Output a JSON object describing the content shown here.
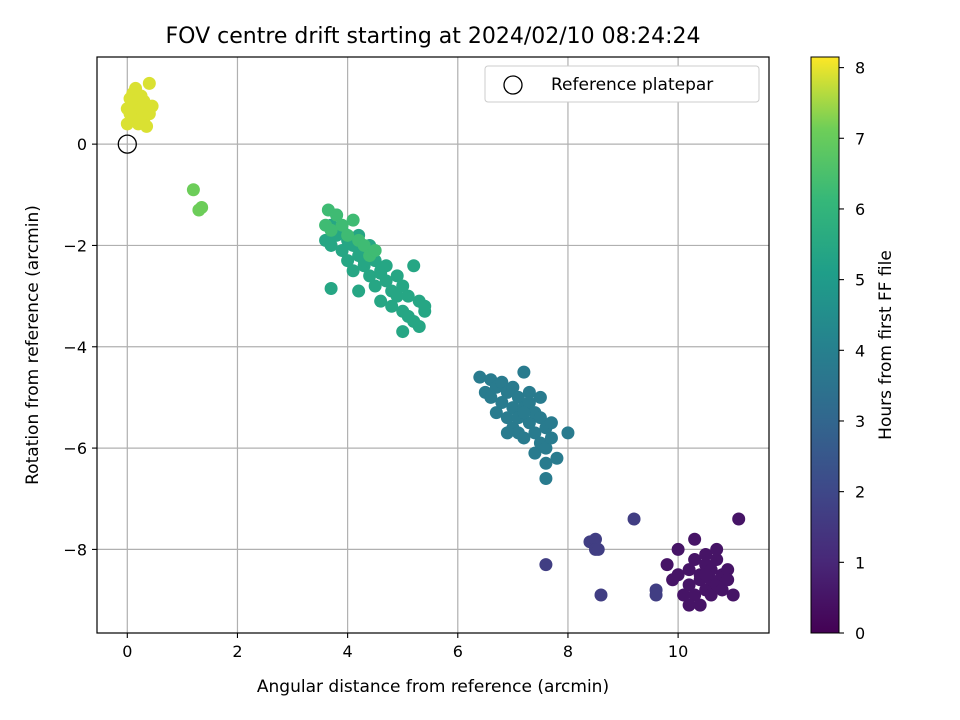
{
  "chart_data": {
    "type": "scatter",
    "title": "FOV centre drift starting at 2024/02/10 08:24:24",
    "xlabel": "Angular distance from reference (arcmin)",
    "ylabel": "Rotation from reference (arcmin)",
    "xlim": [
      -0.55,
      11.65
    ],
    "ylim": [
      -9.65,
      1.72
    ],
    "xticks": [
      0,
      2,
      4,
      6,
      8,
      10
    ],
    "xtick_labels": [
      "0",
      "2",
      "4",
      "6",
      "8",
      "10"
    ],
    "yticks": [
      0,
      -2,
      -4,
      -6,
      -8
    ],
    "ytick_labels": [
      "0",
      "−2",
      "−4",
      "−6",
      "−8"
    ],
    "grid": true,
    "legend": {
      "placement": "upper-right",
      "entries": [
        "Reference platepar"
      ]
    },
    "reference_point": {
      "x": 0,
      "y": 0,
      "name": "Reference platepar"
    },
    "colorbar": {
      "label": "Hours from first FF file",
      "range": [
        0,
        8.15
      ],
      "ticks": [
        0,
        1,
        2,
        3,
        4,
        5,
        6,
        7,
        8
      ],
      "tick_labels": [
        "0",
        "1",
        "2",
        "3",
        "4",
        "5",
        "6",
        "7",
        "8"
      ],
      "colormap": "viridis"
    },
    "clusters": [
      {
        "hours": 0.5,
        "points": [
          [
            9.8,
            -8.3
          ],
          [
            9.9,
            -8.6
          ],
          [
            10.0,
            -8.5
          ],
          [
            10.0,
            -8.0
          ],
          [
            10.1,
            -8.9
          ],
          [
            10.2,
            -8.4
          ],
          [
            10.2,
            -8.7
          ],
          [
            10.3,
            -8.2
          ],
          [
            10.3,
            -8.9
          ],
          [
            10.3,
            -7.8
          ],
          [
            10.4,
            -8.5
          ],
          [
            10.4,
            -8.6
          ],
          [
            10.4,
            -9.1
          ],
          [
            10.5,
            -8.3
          ],
          [
            10.5,
            -8.8
          ],
          [
            10.5,
            -8.1
          ],
          [
            10.6,
            -8.6
          ],
          [
            10.6,
            -8.4
          ],
          [
            10.6,
            -8.9
          ],
          [
            10.7,
            -8.2
          ],
          [
            10.7,
            -8.7
          ],
          [
            10.8,
            -8.5
          ],
          [
            10.8,
            -8.8
          ],
          [
            10.9,
            -8.4
          ],
          [
            10.9,
            -8.6
          ],
          [
            11.0,
            -8.9
          ],
          [
            11.1,
            -7.4
          ],
          [
            10.2,
            -9.1
          ],
          [
            10.7,
            -8.0
          ],
          [
            10.5,
            -8.5
          ]
        ]
      },
      {
        "hours": 1.7,
        "points": [
          [
            8.4,
            -7.85
          ],
          [
            8.5,
            -7.8
          ],
          [
            8.5,
            -8.0
          ],
          [
            8.55,
            -8.0
          ],
          [
            8.6,
            -8.9
          ],
          [
            9.2,
            -7.4
          ],
          [
            9.6,
            -8.8
          ],
          [
            9.6,
            -8.9
          ],
          [
            7.6,
            -8.3
          ]
        ]
      },
      {
        "hours": 3.8,
        "points": [
          [
            6.4,
            -4.6
          ],
          [
            6.5,
            -4.9
          ],
          [
            6.6,
            -5.0
          ],
          [
            6.6,
            -4.65
          ],
          [
            6.7,
            -5.3
          ],
          [
            6.7,
            -4.8
          ],
          [
            6.8,
            -5.1
          ],
          [
            6.8,
            -4.7
          ],
          [
            6.9,
            -5.4
          ],
          [
            6.9,
            -4.9
          ],
          [
            7.0,
            -5.2
          ],
          [
            7.0,
            -5.6
          ],
          [
            7.0,
            -4.8
          ],
          [
            7.1,
            -5.0
          ],
          [
            7.1,
            -5.4
          ],
          [
            7.1,
            -5.7
          ],
          [
            7.2,
            -4.5
          ],
          [
            7.2,
            -5.2
          ],
          [
            7.2,
            -5.8
          ],
          [
            7.3,
            -4.9
          ],
          [
            7.3,
            -5.5
          ],
          [
            7.3,
            -5.1
          ],
          [
            7.4,
            -5.3
          ],
          [
            7.4,
            -5.7
          ],
          [
            7.4,
            -6.1
          ],
          [
            7.5,
            -5.4
          ],
          [
            7.5,
            -5.9
          ],
          [
            7.5,
            -5.0
          ],
          [
            7.6,
            -5.6
          ],
          [
            7.6,
            -6.0
          ],
          [
            7.6,
            -6.3
          ],
          [
            7.6,
            -6.6
          ],
          [
            7.7,
            -5.8
          ],
          [
            7.7,
            -5.5
          ],
          [
            7.8,
            -6.2
          ],
          [
            8.0,
            -5.7
          ],
          [
            6.9,
            -5.7
          ],
          [
            7.2,
            -5.3
          ]
        ]
      },
      {
        "hours": 5.4,
        "points": [
          [
            3.6,
            -1.9
          ],
          [
            3.7,
            -1.6
          ],
          [
            3.7,
            -2.0
          ],
          [
            3.8,
            -1.4
          ],
          [
            3.8,
            -1.8
          ],
          [
            3.9,
            -2.1
          ],
          [
            3.9,
            -1.7
          ],
          [
            4.0,
            -1.9
          ],
          [
            4.0,
            -2.3
          ],
          [
            4.1,
            -2.0
          ],
          [
            4.1,
            -2.5
          ],
          [
            4.2,
            -1.8
          ],
          [
            4.2,
            -2.2
          ],
          [
            4.2,
            -2.9
          ],
          [
            4.3,
            -2.4
          ],
          [
            4.3,
            -2.1
          ],
          [
            4.4,
            -2.6
          ],
          [
            4.4,
            -2.0
          ],
          [
            4.5,
            -2.3
          ],
          [
            4.5,
            -2.8
          ],
          [
            4.6,
            -2.5
          ],
          [
            4.6,
            -3.1
          ],
          [
            4.7,
            -2.7
          ],
          [
            4.7,
            -2.4
          ],
          [
            4.8,
            -2.9
          ],
          [
            4.8,
            -3.2
          ],
          [
            4.9,
            -2.6
          ],
          [
            4.9,
            -3.0
          ],
          [
            5.0,
            -2.8
          ],
          [
            5.0,
            -3.3
          ],
          [
            5.0,
            -3.7
          ],
          [
            5.1,
            -3.0
          ],
          [
            5.1,
            -3.4
          ],
          [
            5.2,
            -2.4
          ],
          [
            5.2,
            -3.5
          ],
          [
            5.3,
            -3.1
          ],
          [
            5.3,
            -3.6
          ],
          [
            5.4,
            -3.3
          ],
          [
            5.4,
            -3.2
          ],
          [
            3.7,
            -2.85
          ],
          [
            4.6,
            -2.55
          ],
          [
            4.3,
            -2.3
          ]
        ]
      },
      {
        "hours": 6.3,
        "points": [
          [
            3.6,
            -1.6
          ],
          [
            3.65,
            -1.3
          ],
          [
            3.7,
            -1.7
          ],
          [
            3.8,
            -1.4
          ],
          [
            3.9,
            -1.6
          ],
          [
            4.0,
            -1.8
          ],
          [
            4.1,
            -1.5
          ],
          [
            4.2,
            -1.9
          ],
          [
            4.3,
            -2.0
          ],
          [
            4.4,
            -2.2
          ],
          [
            4.5,
            -2.1
          ]
        ]
      },
      {
        "hours": 7.1,
        "points": [
          [
            1.2,
            -0.9
          ],
          [
            1.3,
            -1.3
          ],
          [
            1.35,
            -1.25
          ]
        ]
      },
      {
        "hours": 7.9,
        "points": [
          [
            0.0,
            0.4
          ],
          [
            0.0,
            0.7
          ],
          [
            0.05,
            0.9
          ],
          [
            0.1,
            0.5
          ],
          [
            0.1,
            1.0
          ],
          [
            0.1,
            0.8
          ],
          [
            0.15,
            0.6
          ],
          [
            0.2,
            0.9
          ],
          [
            0.2,
            0.4
          ],
          [
            0.25,
            0.7
          ],
          [
            0.3,
            0.5
          ],
          [
            0.3,
            0.85
          ],
          [
            0.35,
            0.35
          ],
          [
            0.4,
            0.6
          ],
          [
            0.4,
            1.2
          ],
          [
            0.45,
            0.75
          ],
          [
            0.05,
            0.6
          ],
          [
            0.15,
            1.1
          ],
          [
            0.25,
            0.95
          ]
        ]
      }
    ]
  }
}
